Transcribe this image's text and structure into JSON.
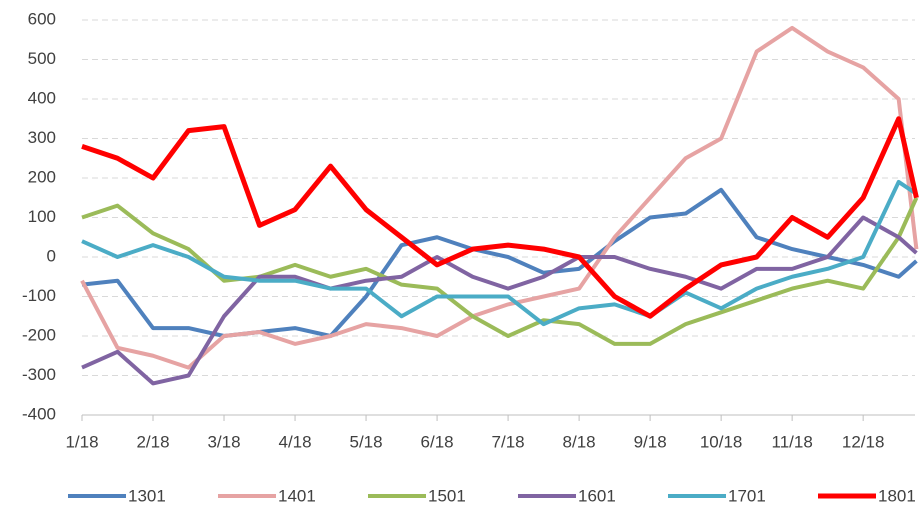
{
  "chart_data": {
    "type": "line",
    "x": [
      0,
      0.5,
      1,
      1.5,
      2,
      2.5,
      3,
      3.5,
      4,
      4.5,
      5,
      5.5,
      6,
      6.5,
      7,
      7.5,
      8,
      8.5,
      9,
      9.5,
      10,
      10.5,
      11,
      11.5,
      11.75
    ],
    "series": [
      {
        "name": "1301",
        "color": "#4f81bd",
        "values": [
          -70,
          -60,
          -180,
          -180,
          -200,
          -190,
          -180,
          -200,
          -100,
          30,
          50,
          20,
          0,
          -40,
          -30,
          40,
          100,
          110,
          170,
          50,
          20,
          0,
          -20,
          -50,
          -10
        ]
      },
      {
        "name": "1401",
        "color": "#e6a3a3",
        "values": [
          -60,
          -230,
          -250,
          -280,
          -200,
          -190,
          -220,
          -200,
          -170,
          -180,
          -200,
          -150,
          -120,
          -100,
          -80,
          50,
          150,
          250,
          300,
          520,
          580,
          520,
          480,
          400,
          20
        ]
      },
      {
        "name": "1501",
        "color": "#9bbb59",
        "values": [
          100,
          130,
          60,
          20,
          -60,
          -50,
          -20,
          -50,
          -30,
          -70,
          -80,
          -150,
          -200,
          -160,
          -170,
          -220,
          -220,
          -170,
          -140,
          -110,
          -80,
          -60,
          -80,
          50,
          150
        ]
      },
      {
        "name": "1601",
        "color": "#8064a2",
        "values": [
          -280,
          -240,
          -320,
          -300,
          -150,
          -50,
          -50,
          -80,
          -60,
          -50,
          0,
          -50,
          -80,
          -50,
          0,
          0,
          -30,
          -50,
          -80,
          -30,
          -30,
          0,
          100,
          50,
          10
        ]
      },
      {
        "name": "1701",
        "color": "#4bacc6",
        "values": [
          40,
          0,
          30,
          0,
          -50,
          -60,
          -60,
          -80,
          -80,
          -150,
          -100,
          -100,
          -100,
          -170,
          -130,
          -120,
          -150,
          -90,
          -130,
          -80,
          -50,
          -30,
          0,
          190,
          160
        ]
      },
      {
        "name": "1801",
        "color": "#ff0000",
        "values": [
          280,
          250,
          200,
          320,
          330,
          80,
          120,
          230,
          120,
          50,
          -20,
          20,
          30,
          20,
          0,
          -100,
          -150,
          -80,
          -20,
          0,
          100,
          50,
          150,
          350,
          150
        ]
      }
    ],
    "xlim": [
      0,
      11.73
    ],
    "xticks": [
      {
        "value": 0,
        "label": "1/18"
      },
      {
        "value": 1,
        "label": "2/18"
      },
      {
        "value": 2,
        "label": "3/18"
      },
      {
        "value": 3,
        "label": "4/18"
      },
      {
        "value": 4,
        "label": "5/18"
      },
      {
        "value": 5,
        "label": "6/18"
      },
      {
        "value": 6,
        "label": "7/18"
      },
      {
        "value": 7,
        "label": "8/18"
      },
      {
        "value": 8,
        "label": "9/18"
      },
      {
        "value": 9,
        "label": "10/18"
      },
      {
        "value": 10,
        "label": "11/18"
      },
      {
        "value": 11,
        "label": "12/18"
      }
    ],
    "ylim": [
      -400,
      600
    ],
    "yticks": [
      -400,
      -300,
      -200,
      -100,
      0,
      100,
      200,
      300,
      400,
      500,
      600
    ],
    "grid": true
  }
}
